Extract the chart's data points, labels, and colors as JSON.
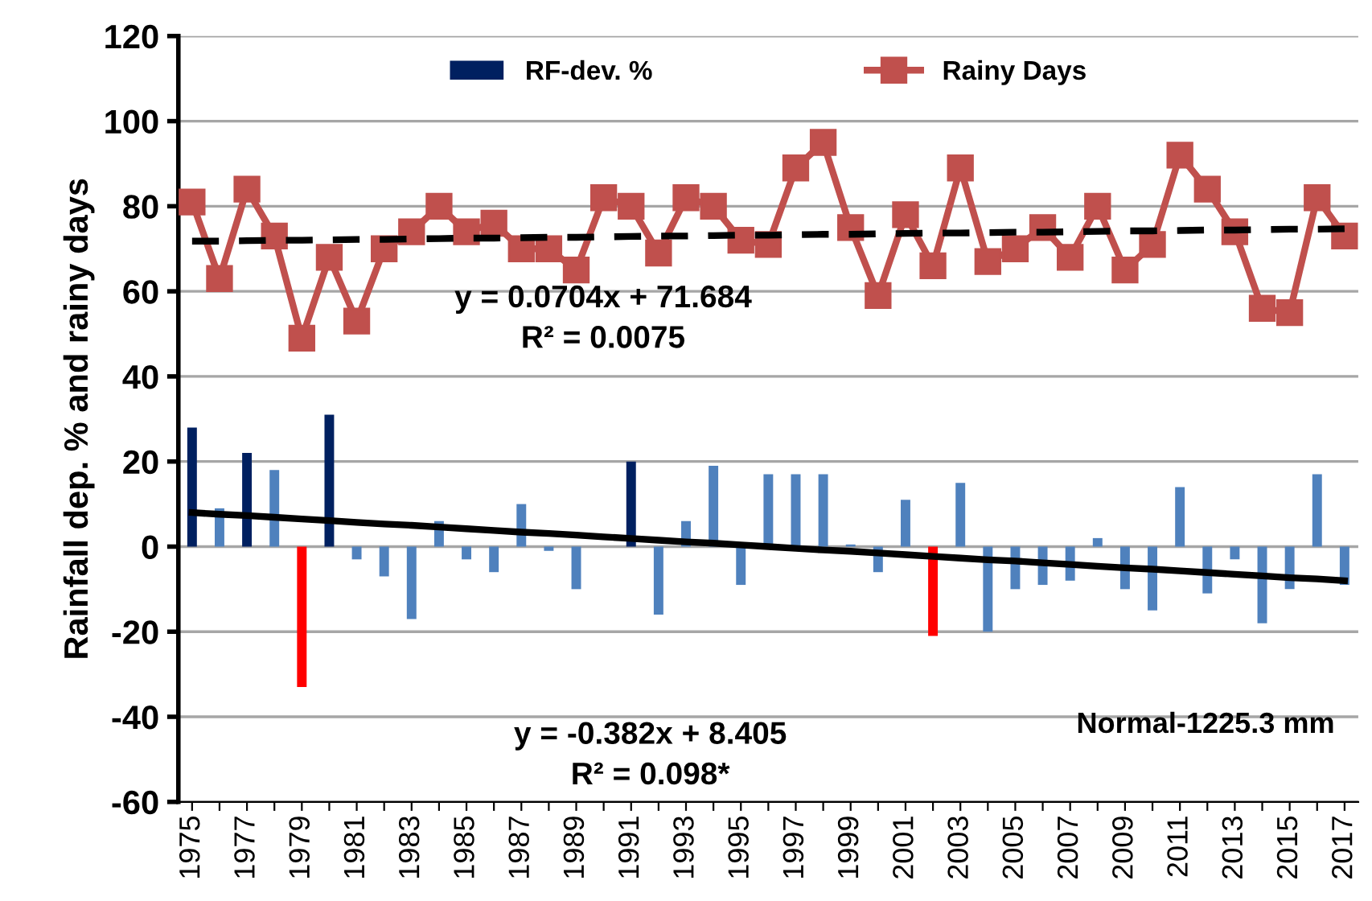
{
  "chart_data": {
    "type": "bar",
    "ylabel": "Rainfall dep. % and rainy days",
    "categories": [
      "1975",
      null,
      "1977",
      null,
      "1979",
      null,
      "1981",
      null,
      "1983",
      null,
      "1985",
      null,
      "1987",
      null,
      "1989",
      null,
      "1991",
      null,
      "1993",
      null,
      "1995",
      null,
      "1997",
      null,
      "1999",
      null,
      "2001",
      null,
      "2003",
      null,
      "2005",
      null,
      "2007",
      null,
      "2009",
      null,
      "2011",
      null,
      "2013",
      null,
      "2015",
      null,
      "2017"
    ],
    "series": [
      {
        "name": "RF-dev. %",
        "color": "#4f81bd",
        "colors": [
          "#002060",
          "#4f81bd",
          "#002060",
          "#4f81bd",
          "#ff0000",
          "#002060",
          "#4f81bd",
          "#4f81bd",
          "#4f81bd",
          "#4f81bd",
          "#4f81bd",
          "#4f81bd",
          "#4f81bd",
          "#4f81bd",
          "#4f81bd",
          "#4f81bd",
          "#002060",
          "#4f81bd",
          "#4f81bd",
          "#4f81bd",
          "#4f81bd",
          "#4f81bd",
          "#4f81bd",
          "#4f81bd",
          "#4f81bd",
          "#4f81bd",
          "#4f81bd",
          "#ff0000",
          "#4f81bd",
          "#4f81bd",
          "#4f81bd",
          "#4f81bd",
          "#4f81bd",
          "#4f81bd",
          "#4f81bd",
          "#4f81bd",
          "#4f81bd",
          "#4f81bd",
          "#4f81bd",
          "#4f81bd",
          "#4f81bd",
          "#4f81bd",
          "#4f81bd"
        ],
        "values": [
          28,
          9,
          22,
          18,
          -33,
          31,
          -3,
          -7,
          -17,
          6,
          -3,
          -6,
          10,
          -1,
          -10,
          0,
          20,
          -16,
          6,
          19,
          -9,
          17,
          17,
          17,
          0.5,
          -6,
          11,
          -21,
          15,
          -20,
          -10,
          -9,
          -8,
          2,
          -10,
          -15,
          14,
          -11,
          -3,
          -18,
          -10,
          17,
          -9
        ]
      },
      {
        "name": "Rainy Days",
        "type": "line",
        "color": "#c0504d",
        "marker": "square",
        "values": [
          81,
          63,
          84,
          73,
          49,
          68,
          53,
          70,
          74,
          80,
          74,
          76,
          70,
          70,
          65,
          82,
          80,
          69,
          82,
          80,
          72,
          71,
          89,
          95,
          75,
          59,
          78,
          66,
          89,
          67,
          70,
          75,
          68,
          80,
          65,
          71,
          92,
          84,
          74,
          56,
          55,
          82,
          73
        ]
      },
      {
        "type": "line",
        "color": "#000000",
        "line_style": "dashed",
        "values": [
          71.8,
          71.8,
          71.9,
          72.0,
          72.0,
          72.1,
          72.2,
          72.2,
          72.3,
          72.4,
          72.5,
          72.5,
          72.6,
          72.7,
          72.7,
          72.8,
          72.9,
          73.0,
          73.0,
          73.1,
          73.2,
          73.2,
          73.3,
          73.4,
          73.4,
          73.5,
          73.6,
          73.7,
          73.7,
          73.8,
          73.9,
          73.9,
          74.0,
          74.1,
          74.2,
          74.2,
          74.3,
          74.4,
          74.4,
          74.5,
          74.6,
          74.6,
          74.7
        ]
      },
      {
        "type": "line",
        "color": "#000000",
        "line_style": "solid",
        "values": [
          8.0,
          7.6,
          7.3,
          6.9,
          6.5,
          6.1,
          5.7,
          5.3,
          5.0,
          4.6,
          4.2,
          3.8,
          3.4,
          3.1,
          2.7,
          2.3,
          1.9,
          1.5,
          1.1,
          0.8,
          0.4,
          0.0,
          -0.4,
          -0.8,
          -1.1,
          -1.5,
          -1.9,
          -2.3,
          -2.7,
          -3.1,
          -3.4,
          -3.8,
          -4.2,
          -4.6,
          -5.0,
          -5.3,
          -5.7,
          -6.1,
          -6.5,
          -6.9,
          -7.3,
          -7.6,
          -8.0
        ]
      }
    ],
    "ylim": [
      -60,
      120
    ],
    "yticks": [
      -60,
      -40,
      -20,
      0,
      20,
      40,
      60,
      80,
      100,
      120
    ],
    "grid": "y",
    "legend": "top",
    "annotations": [
      "y = 0.0704x + 71.684\nR² = 0.0075",
      "y = -0.382x + 8.405\nR² = 0.098*",
      "Normal-1225.3 mm"
    ]
  }
}
